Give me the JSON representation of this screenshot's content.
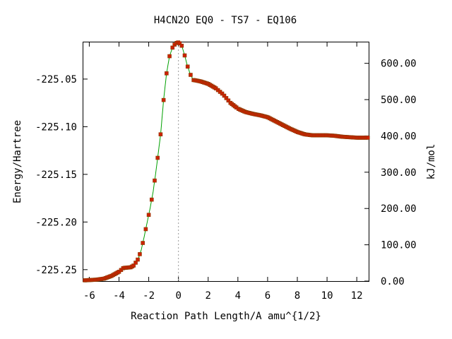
{
  "chart_data": {
    "type": "line",
    "title": "H4CN2O   EQ0 - TS7 - EQ106",
    "xlabel": "Reaction Path Length/A amu^{1/2}",
    "ylabel": "Energy/Hartree",
    "y2label": "kJ/mol",
    "xlim": [
      -6.4,
      12.8
    ],
    "ylim": [
      -225.262,
      -225.0115
    ],
    "y2lim": [
      0.0,
      657.7
    ],
    "x_ticks": [
      -6,
      -4,
      -2,
      0,
      2,
      4,
      6,
      8,
      10,
      12
    ],
    "x_tick_labels": [
      "-6",
      "-4",
      "-2",
      "0",
      "2",
      "4",
      "6",
      "8",
      "10",
      "12"
    ],
    "y_ticks": [
      -225.25,
      -225.2,
      -225.15,
      -225.1,
      -225.05
    ],
    "y_tick_labels": [
      "-225.25",
      "-225.20",
      "-225.15",
      "-225.10",
      "-225.05"
    ],
    "y2_ticks": [
      0,
      100,
      200,
      300,
      400,
      500,
      600
    ],
    "y2_tick_labels": [
      "0.00",
      "100.00",
      "200.00",
      "300.00",
      "400.00",
      "500.00",
      "600.00"
    ],
    "ts_x": 0.0,
    "colors": {
      "line": "#00a000",
      "marker": "#cc2200",
      "marker_edge": "#8a3a00",
      "ts_line": "#999999"
    },
    "grid": false,
    "legend": "none",
    "curve": {
      "x": [
        -6.3,
        -5.5,
        -5.0,
        -4.5,
        -4.0,
        -3.7,
        -3.2,
        -3.0,
        -2.7,
        -2.5,
        -2.3,
        -2.1,
        -1.9,
        -1.7,
        -1.5,
        -1.2,
        -1.0,
        -0.8,
        -0.6,
        -0.4,
        -0.2,
        0.0,
        0.2,
        0.4,
        0.6,
        0.8,
        1.0,
        1.2,
        1.5,
        2.0,
        2.5,
        3.0,
        3.5,
        4.0,
        4.5,
        5.0,
        5.5,
        6.0,
        6.5,
        7.0,
        7.5,
        8.0,
        8.5,
        9.0,
        9.5,
        10.0,
        10.5,
        11.0,
        11.5,
        12.0,
        12.8
      ],
      "y": [
        -225.2612,
        -225.2605,
        -225.2594,
        -225.2565,
        -225.2522,
        -225.2482,
        -225.2475,
        -225.2455,
        -225.2385,
        -225.229,
        -225.215,
        -225.2,
        -225.185,
        -225.168,
        -225.145,
        -225.108,
        -225.072,
        -225.044,
        -225.026,
        -225.017,
        -225.0125,
        -225.0115,
        -225.014,
        -225.024,
        -225.036,
        -225.045,
        -225.051,
        -225.0515,
        -225.0525,
        -225.055,
        -225.0595,
        -225.066,
        -225.075,
        -225.081,
        -225.0845,
        -225.0865,
        -225.088,
        -225.09,
        -225.094,
        -225.098,
        -225.102,
        -225.1055,
        -225.108,
        -225.109,
        -225.109,
        -225.109,
        -225.1095,
        -225.1105,
        -225.111,
        -225.1115,
        -225.1115
      ]
    }
  }
}
